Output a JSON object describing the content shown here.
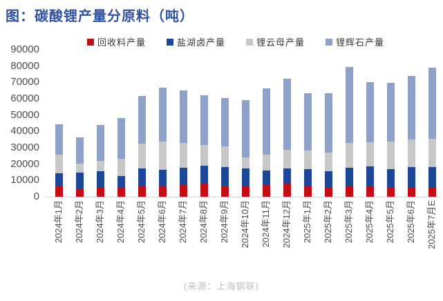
{
  "title": "图：碳酸锂产量分原料（吨）",
  "source": "(来源：上海钢联)",
  "colors": {
    "title_text": "#3050A0",
    "axis_text": "#4d4d4d",
    "axis_line": "#d9d9d9",
    "source_text": "#bfbfbf",
    "recycled": "#C20F14",
    "salt_lake": "#1B4796",
    "lepidolite": "#C7C7C7",
    "spodumene": "#8DA1C9"
  },
  "chart_data": {
    "type": "bar",
    "stacked": true,
    "title": "图：碳酸锂产量分原料（吨）",
    "xlabel": "",
    "ylabel": "",
    "ylim": [
      0,
      90000
    ],
    "yticks": [
      0,
      10000,
      20000,
      30000,
      40000,
      50000,
      60000,
      70000,
      80000,
      90000
    ],
    "grid": false,
    "legend_position": "top",
    "categories": [
      "2024年1月",
      "2024年2月",
      "2024年3月",
      "2024年4月",
      "2024年5月",
      "2024年6月",
      "2024年7月",
      "2024年8月",
      "2024年9月",
      "2024年10月",
      "2024年11月",
      "2024年12月",
      "2025年1月",
      "2025年2月",
      "2025年3月",
      "2025年4月",
      "2025年5月",
      "2025年6月",
      "2025年7月E"
    ],
    "series": [
      {
        "name": "回收料产量",
        "color": "#C20F14",
        "values": [
          6200,
          4800,
          5900,
          5400,
          6200,
          6500,
          7500,
          7900,
          6800,
          6200,
          7500,
          8300,
          6200,
          5900,
          6600,
          6600,
          5400,
          5600,
          5500
        ]
      },
      {
        "name": "盐湖卤产量",
        "color": "#1B4796",
        "values": [
          8200,
          10200,
          9600,
          7100,
          11000,
          10100,
          10400,
          11200,
          11500,
          11300,
          8700,
          8900,
          10700,
          9800,
          11200,
          12100,
          11600,
          12400,
          12500
        ]
      },
      {
        "name": "锂云母产量",
        "color": "#C7C7C7",
        "values": [
          11300,
          5200,
          6500,
          10600,
          15300,
          17400,
          15100,
          12500,
          12700,
          6800,
          9500,
          11700,
          11300,
          11300,
          15300,
          14800,
          17000,
          17200,
          17600
        ]
      },
      {
        "name": "锂辉石产量",
        "color": "#8DA1C9",
        "values": [
          18800,
          16000,
          22100,
          25200,
          29200,
          32900,
          32100,
          30600,
          29600,
          34700,
          40800,
          43200,
          35200,
          36400,
          46500,
          36500,
          35700,
          38700,
          43500
        ]
      }
    ]
  }
}
